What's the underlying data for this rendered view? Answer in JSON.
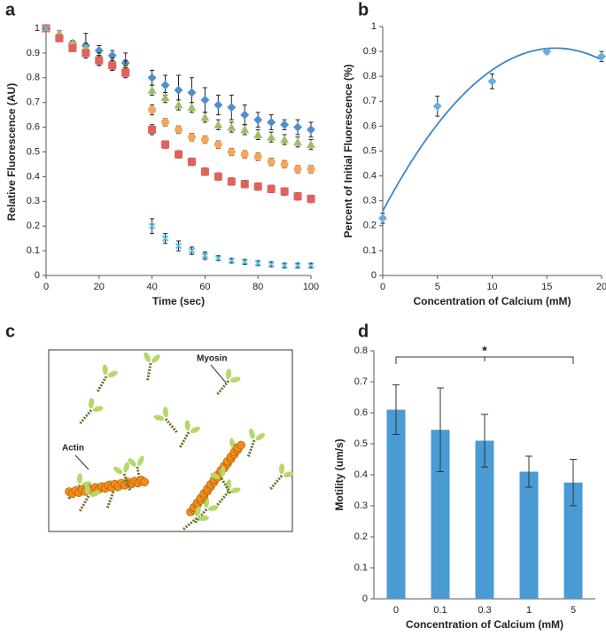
{
  "chart_data": [
    {
      "type": "scatter",
      "panel": "a",
      "xlabel": "Time (sec)",
      "ylabel": "Relative Fluorescence (AU)",
      "x": [
        0,
        5,
        10,
        15,
        20,
        25,
        30,
        40,
        45,
        50,
        55,
        60,
        65,
        70,
        75,
        80,
        85,
        90,
        95,
        100
      ],
      "xlim": [
        0,
        100
      ],
      "xticks": [
        0,
        20,
        40,
        60,
        80,
        100
      ],
      "ylim": [
        0,
        1
      ],
      "yticks": [
        0,
        0.1,
        0.2,
        0.3,
        0.4,
        0.5,
        0.6,
        0.7,
        0.8,
        0.9,
        1
      ],
      "series": [
        {
          "color": "#4f8fce",
          "marker": "diamond",
          "values": [
            1,
            0.96,
            0.94,
            0.93,
            0.91,
            0.89,
            0.86,
            0.8,
            0.77,
            0.75,
            0.74,
            0.71,
            0.69,
            0.68,
            0.65,
            0.63,
            0.62,
            0.61,
            0.6,
            0.59
          ],
          "errors": [
            0,
            0.01,
            0.01,
            0.05,
            0.02,
            0.02,
            0.04,
            0.03,
            0.04,
            0.06,
            0.06,
            0.05,
            0.04,
            0.05,
            0.04,
            0.03,
            0.03,
            0.02,
            0.03,
            0.03
          ]
        },
        {
          "color": "#9cbf6a",
          "marker": "triangle",
          "values": [
            1,
            0.98,
            0.94,
            0.92,
            0.88,
            0.86,
            0.84,
            0.75,
            0.72,
            0.69,
            0.68,
            0.64,
            0.61,
            0.6,
            0.59,
            0.57,
            0.56,
            0.55,
            0.54,
            0.53
          ],
          "errors": [
            0,
            0.01,
            0.01,
            0.02,
            0.02,
            0.02,
            0.03,
            0.02,
            0.02,
            0.02,
            0.02,
            0.02,
            0.02,
            0.02,
            0.02,
            0.02,
            0.02,
            0.02,
            0.02,
            0.02
          ]
        },
        {
          "color": "#f6a55a",
          "marker": "circle",
          "values": [
            1,
            0.96,
            0.93,
            0.9,
            0.87,
            0.85,
            0.83,
            0.67,
            0.62,
            0.59,
            0.56,
            0.55,
            0.53,
            0.5,
            0.49,
            0.48,
            0.46,
            0.45,
            0.43,
            0.43
          ],
          "errors": [
            0,
            0.01,
            0.01,
            0.01,
            0.02,
            0.02,
            0.02,
            0.02,
            0.015,
            0.015,
            0.015,
            0.015,
            0.015,
            0.015,
            0.015,
            0.015,
            0.015,
            0.015,
            0.015,
            0.015
          ]
        },
        {
          "color": "#e0625c",
          "marker": "square",
          "values": [
            1,
            0.96,
            0.92,
            0.9,
            0.87,
            0.85,
            0.82,
            0.59,
            0.53,
            0.49,
            0.46,
            0.42,
            0.4,
            0.38,
            0.37,
            0.36,
            0.35,
            0.34,
            0.32,
            0.31
          ],
          "errors": [
            0,
            0.01,
            0.01,
            0.01,
            0.02,
            0.02,
            0.02,
            0.02,
            0.015,
            0.015,
            0.015,
            0.015,
            0.015,
            0.015,
            0.015,
            0.015,
            0.015,
            0.015,
            0.015,
            0.015
          ]
        },
        {
          "color": "#5bc3e0",
          "marker": "x",
          "values": [
            1,
            null,
            null,
            null,
            null,
            null,
            null,
            0.2,
            0.15,
            0.12,
            0.1,
            0.08,
            0.07,
            0.06,
            0.055,
            0.05,
            0.045,
            0.04,
            0.04,
            0.04
          ],
          "errors": [
            0,
            null,
            null,
            null,
            null,
            null,
            null,
            0.03,
            0.02,
            0.02,
            0.015,
            0.015,
            0.01,
            0.01,
            0.01,
            0.01,
            0.01,
            0.01,
            0.01,
            0.01
          ]
        }
      ]
    },
    {
      "type": "scatter",
      "panel": "b",
      "xlabel": "Concentration of Calcium (mM)",
      "ylabel": "Percent of Initial Fluorescence (%)",
      "x": [
        0,
        5,
        10,
        15,
        20
      ],
      "xlim": [
        0,
        20
      ],
      "xticks": [
        0,
        5,
        10,
        15,
        20
      ],
      "ylim": [
        0,
        1
      ],
      "yticks": [
        0,
        0.1,
        0.2,
        0.3,
        0.4,
        0.5,
        0.6,
        0.7,
        0.8,
        0.9,
        1
      ],
      "series": [
        {
          "color": "#6aaee0",
          "marker": "diamond",
          "values": [
            0.23,
            0.68,
            0.78,
            0.9,
            0.88
          ],
          "errors": [
            0.02,
            0.04,
            0.03,
            0.01,
            0.02
          ]
        }
      ],
      "trendline": {
        "type": "polynomial",
        "order": 2,
        "color": "#3a86c8"
      }
    },
    {
      "type": "bar",
      "panel": "d",
      "xlabel": "Concentration of Calcium (mM)",
      "ylabel": "Motility (um/s)",
      "categories": [
        "0",
        "0.1",
        "0.3",
        "1",
        "5"
      ],
      "values": [
        0.61,
        0.545,
        0.51,
        0.41,
        0.375
      ],
      "errors": [
        0.08,
        0.135,
        0.085,
        0.05,
        0.075
      ],
      "color": "#4a9bd4",
      "ylim": [
        0,
        0.8
      ],
      "yticks": [
        0,
        0.1,
        0.2,
        0.3,
        0.4,
        0.5,
        0.6,
        0.7,
        0.8
      ],
      "annotation": {
        "text": "*",
        "from": "0",
        "to": "5",
        "y": 0.78
      }
    }
  ],
  "diagram": {
    "panel": "c",
    "labels": [
      "Myosin",
      "Actin"
    ]
  }
}
